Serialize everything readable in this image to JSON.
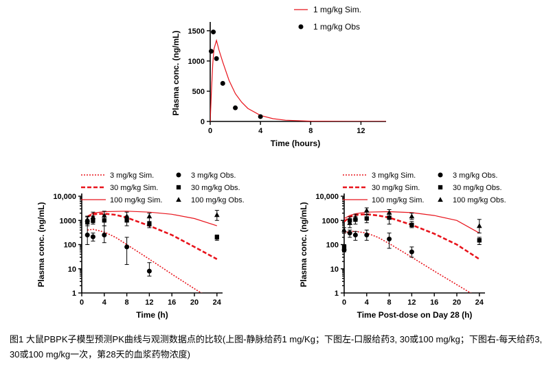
{
  "caption": "图1 大鼠PBPK子模型预测PK曲线与观测数据点的比较(上图-静脉给药1 mg/Kg；下图左-口服给药3, 30或100 mg/kg；下图右-每天给药3, 30或100 mg/kg一次，第28天的血浆药物浓度)",
  "colors": {
    "sim": "#e8131b",
    "obs": "#000000"
  },
  "chart_data": [
    {
      "id": "top",
      "type": "line",
      "xlabel": "Time (hours)",
      "ylabel": "Plasma conc. (ng/mL)",
      "xlim": [
        0,
        14
      ],
      "ylim": [
        0,
        1600
      ],
      "xticks": [
        0,
        4,
        8,
        12
      ],
      "yticks": [
        0,
        500,
        1000,
        1500
      ],
      "xtick_labels": [
        "0",
        "4",
        "8",
        "12"
      ],
      "ytick_labels": [
        "0",
        "500",
        "1000",
        "1500"
      ],
      "legend": [
        {
          "label": "1 mg/kg Sim.",
          "kind": "line",
          "style": "solid"
        },
        {
          "label": "1 mg/kg Obs",
          "kind": "marker",
          "marker": "circle"
        }
      ],
      "series": [
        {
          "label_ref": 0,
          "kind": "line",
          "style": "solid",
          "x": [
            0,
            0.1,
            0.2,
            0.3,
            0.5,
            0.7,
            1,
            1.5,
            2,
            2.5,
            3,
            4,
            5,
            6,
            8,
            10,
            12,
            14
          ],
          "y": [
            0,
            500,
            950,
            1200,
            1340,
            1180,
            980,
            680,
            460,
            320,
            215,
            100,
            45,
            20,
            5,
            1,
            0.3,
            0.1
          ]
        },
        {
          "label_ref": 1,
          "kind": "marker",
          "marker": "circle",
          "x": [
            0.08,
            0.25,
            0.5,
            1,
            2,
            4
          ],
          "y": [
            1160,
            1480,
            1040,
            630,
            225,
            80
          ]
        }
      ]
    },
    {
      "id": "bottom-left",
      "type": "line",
      "yscale": "log",
      "xlabel": "Time (h)",
      "ylabel": "Plasma conc. (ng/mL)",
      "xlim": [
        0,
        25
      ],
      "ylim": [
        1,
        10000
      ],
      "xticks": [
        0,
        4,
        8,
        12,
        16,
        20,
        24
      ],
      "yticks": [
        1,
        10,
        100,
        1000,
        10000
      ],
      "xtick_labels": [
        "0",
        "4",
        "8",
        "12",
        "16",
        "20",
        "24"
      ],
      "ytick_labels": [
        "1",
        "10",
        "100",
        "1000",
        "10,000"
      ],
      "legend": [
        {
          "label": "3 mg/kg Sim.",
          "kind": "line",
          "style": "dotted"
        },
        {
          "label": "3 mg/kg Obs.",
          "kind": "marker",
          "marker": "circle"
        },
        {
          "label": "30 mg/kg Sim.",
          "kind": "line",
          "style": "dashed"
        },
        {
          "label": "30 mg/kg Obs.",
          "kind": "marker",
          "marker": "square"
        },
        {
          "label": "100 mg/kg Sim.",
          "kind": "line",
          "style": "solid"
        },
        {
          "label": "100 mg/kg Obs.",
          "kind": "marker",
          "marker": "triangle"
        }
      ],
      "series": [
        {
          "label_ref": 0,
          "kind": "line",
          "style": "dotted",
          "x": [
            1,
            2,
            4,
            6,
            8,
            12,
            16,
            20,
            24
          ],
          "y": [
            400,
            430,
            330,
            200,
            100,
            25,
            6,
            1.5,
            0.4
          ]
        },
        {
          "label_ref": 2,
          "kind": "line",
          "style": "dashed",
          "x": [
            1,
            2,
            4,
            6,
            8,
            12,
            16,
            20,
            24
          ],
          "y": [
            1400,
            1800,
            1900,
            1700,
            1300,
            600,
            250,
            80,
            25
          ]
        },
        {
          "label_ref": 4,
          "kind": "line",
          "style": "solid",
          "x": [
            1,
            2,
            4,
            8,
            12,
            16,
            20,
            24
          ],
          "y": [
            1500,
            2000,
            2300,
            2400,
            2200,
            1800,
            1200,
            600
          ]
        },
        {
          "label_ref": 1,
          "kind": "marker",
          "marker": "circle",
          "x": [
            1,
            2,
            4,
            8,
            12
          ],
          "y": [
            250,
            210,
            250,
            80,
            8
          ],
          "err_lo": [
            100,
            140,
            120,
            15,
            5
          ],
          "err_hi": [
            700,
            300,
            600,
            200,
            18
          ]
        },
        {
          "label_ref": 3,
          "kind": "marker",
          "marker": "square",
          "x": [
            1,
            2,
            4,
            8,
            12,
            24
          ],
          "y": [
            900,
            1000,
            1000,
            1000,
            700,
            200
          ],
          "err_lo": [
            600,
            700,
            600,
            600,
            500,
            150
          ],
          "err_hi": [
            1400,
            1500,
            1700,
            1500,
            900,
            250
          ]
        },
        {
          "label_ref": 5,
          "kind": "marker",
          "marker": "triangle",
          "x": [
            1,
            2,
            4,
            8,
            12,
            24
          ],
          "y": [
            1100,
            1400,
            1600,
            1500,
            1500,
            1700
          ],
          "err_lo": [
            700,
            800,
            1000,
            900,
            900,
            1000
          ],
          "err_hi": [
            1500,
            2200,
            2400,
            2200,
            2000,
            2600
          ]
        }
      ]
    },
    {
      "id": "bottom-right",
      "type": "line",
      "yscale": "log",
      "xlabel": "Time Post-dose on Day 28 (h)",
      "ylabel": "Plasma conc. (ng/mL)",
      "xlim": [
        0,
        25
      ],
      "ylim": [
        1,
        10000
      ],
      "xticks": [
        0,
        4,
        8,
        12,
        16,
        20,
        24
      ],
      "yticks": [
        1,
        10,
        100,
        1000,
        10000
      ],
      "xtick_labels": [
        "0",
        "4",
        "8",
        "12",
        "16",
        "20",
        "24"
      ],
      "ytick_labels": [
        "1",
        "10",
        "100",
        "1000",
        "10,000"
      ],
      "legend": [
        {
          "label": "3 mg/kg Sim.",
          "kind": "line",
          "style": "dotted"
        },
        {
          "label": "3 mg/kg Obs.",
          "kind": "marker",
          "marker": "circle"
        },
        {
          "label": "30 mg/kg Sim.",
          "kind": "line",
          "style": "dashed"
        },
        {
          "label": "30 mg/kg Obs.",
          "kind": "marker",
          "marker": "square"
        },
        {
          "label": "100 mg/kg Sim.",
          "kind": "line",
          "style": "solid"
        },
        {
          "label": "100 mg/kg Obs.",
          "kind": "marker",
          "marker": "triangle"
        }
      ],
      "series": [
        {
          "label_ref": 0,
          "kind": "line",
          "style": "dotted",
          "x": [
            0,
            1,
            2,
            4,
            6,
            8,
            12,
            16,
            20,
            24
          ],
          "y": [
            300,
            350,
            350,
            300,
            200,
            110,
            30,
            8,
            2.2,
            0.6
          ]
        },
        {
          "label_ref": 2,
          "kind": "line",
          "style": "dashed",
          "x": [
            0,
            1,
            2,
            4,
            6,
            8,
            12,
            16,
            20,
            24
          ],
          "y": [
            900,
            1400,
            1700,
            1800,
            1600,
            1300,
            650,
            280,
            100,
            25
          ]
        },
        {
          "label_ref": 4,
          "kind": "line",
          "style": "solid",
          "x": [
            0,
            1,
            2,
            4,
            8,
            12,
            16,
            20,
            24
          ],
          "y": [
            1200,
            1600,
            1900,
            2200,
            2300,
            2100,
            1600,
            1000,
            300
          ]
        },
        {
          "label_ref": 1,
          "kind": "marker",
          "marker": "circle",
          "x": [
            0,
            1,
            2,
            4,
            8,
            12
          ],
          "y": [
            60,
            300,
            250,
            250,
            170,
            50
          ],
          "err_lo": [
            50,
            200,
            150,
            150,
            70,
            30
          ],
          "err_hi": [
            80,
            400,
            350,
            400,
            300,
            80
          ]
        },
        {
          "label_ref": 3,
          "kind": "marker",
          "marker": "square",
          "x": [
            0,
            1,
            2,
            4,
            8,
            12,
            24
          ],
          "y": [
            80,
            1000,
            1100,
            1200,
            1300,
            650,
            150
          ],
          "err_lo": [
            60,
            700,
            700,
            800,
            700,
            500,
            100
          ],
          "err_hi": [
            100,
            1400,
            1500,
            1700,
            2000,
            900,
            200
          ]
        },
        {
          "label_ref": 5,
          "kind": "marker",
          "marker": "triangle",
          "x": [
            0,
            1,
            2,
            4,
            8,
            12,
            24
          ],
          "y": [
            400,
            800,
            1300,
            2600,
            2100,
            1500,
            600
          ],
          "err_lo": [
            300,
            500,
            900,
            1800,
            1500,
            1100,
            300
          ],
          "err_hi": [
            500,
            1100,
            1800,
            3300,
            2800,
            2000,
            1100
          ]
        }
      ]
    }
  ]
}
